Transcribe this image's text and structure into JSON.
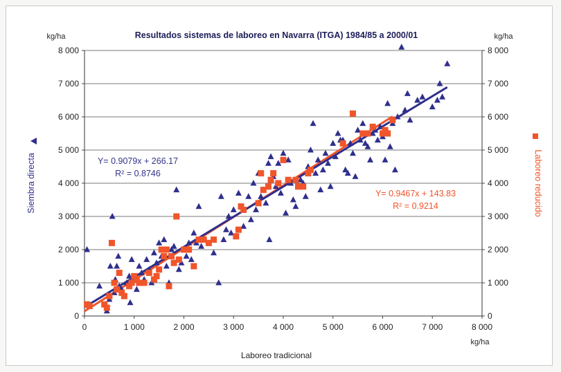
{
  "chart_data": {
    "type": "scatter",
    "title": "Resultados sistemas de laboreo en Navarra (ITGA) 1984/85 a  2000/01",
    "xlabel": "Laboreo tradicional",
    "x_unit": "kg/ha",
    "ylabel_left": "Siembra directa",
    "ylabel_right": "Laboreo reducido",
    "y_unit_left": "kg/ha",
    "y_unit_right": "kg/ha",
    "xlim": [
      0,
      8000
    ],
    "ylim": [
      0,
      8000
    ],
    "x_ticks": [
      "0",
      "1 000",
      "2 000",
      "3 000",
      "4 000",
      "5 000",
      "6 000",
      "7 000",
      "8 000"
    ],
    "y_ticks": [
      "0",
      "1 000",
      "2 000",
      "3 000",
      "4 000",
      "5 000",
      "6 000",
      "7 000",
      "8 000"
    ],
    "grid": "horizontal",
    "series": [
      {
        "name": "Siembra directa",
        "marker": "triangle",
        "color": "#2f2f8c",
        "equation": "Y= 0.9079x + 266.17",
        "r2": "R² = 0.8746",
        "trend": {
          "slope": 0.9079,
          "intercept": 266.17
        },
        "points": [
          [
            50,
            2000
          ],
          [
            300,
            900
          ],
          [
            450,
            150
          ],
          [
            500,
            500
          ],
          [
            520,
            1500
          ],
          [
            560,
            3000
          ],
          [
            600,
            700
          ],
          [
            620,
            1100
          ],
          [
            650,
            1500
          ],
          [
            680,
            1800
          ],
          [
            700,
            900
          ],
          [
            750,
            800
          ],
          [
            800,
            600
          ],
          [
            850,
            1000
          ],
          [
            900,
            1200
          ],
          [
            920,
            400
          ],
          [
            950,
            1700
          ],
          [
            1000,
            1100
          ],
          [
            1050,
            800
          ],
          [
            1100,
            1500
          ],
          [
            1150,
            1300
          ],
          [
            1200,
            1100
          ],
          [
            1250,
            1700
          ],
          [
            1300,
            1400
          ],
          [
            1350,
            1000
          ],
          [
            1400,
            1900
          ],
          [
            1450,
            1600
          ],
          [
            1500,
            2200
          ],
          [
            1550,
            1800
          ],
          [
            1600,
            2300
          ],
          [
            1650,
            1500
          ],
          [
            1700,
            1000
          ],
          [
            1750,
            2000
          ],
          [
            1800,
            2100
          ],
          [
            1850,
            3800
          ],
          [
            1900,
            1400
          ],
          [
            1950,
            1600
          ],
          [
            2000,
            2000
          ],
          [
            2050,
            1800
          ],
          [
            2100,
            2200
          ],
          [
            2150,
            1700
          ],
          [
            2200,
            2500
          ],
          [
            2250,
            2200
          ],
          [
            2300,
            3300
          ],
          [
            2350,
            2100
          ],
          [
            2400,
            2300
          ],
          [
            2500,
            2200
          ],
          [
            2600,
            1900
          ],
          [
            2700,
            1000
          ],
          [
            2750,
            3600
          ],
          [
            2800,
            2300
          ],
          [
            2850,
            2600
          ],
          [
            2900,
            3000
          ],
          [
            2950,
            2500
          ],
          [
            3000,
            3200
          ],
          [
            3050,
            2400
          ],
          [
            3100,
            3700
          ],
          [
            3200,
            2700
          ],
          [
            3300,
            3600
          ],
          [
            3350,
            2900
          ],
          [
            3400,
            4000
          ],
          [
            3450,
            3200
          ],
          [
            3500,
            4300
          ],
          [
            3550,
            3600
          ],
          [
            3600,
            3800
          ],
          [
            3650,
            3400
          ],
          [
            3700,
            4600
          ],
          [
            3720,
            2300
          ],
          [
            3750,
            4800
          ],
          [
            3800,
            4200
          ],
          [
            3850,
            3900
          ],
          [
            3900,
            4600
          ],
          [
            3950,
            3700
          ],
          [
            4000,
            4900
          ],
          [
            4050,
            3100
          ],
          [
            4100,
            4700
          ],
          [
            4150,
            4000
          ],
          [
            4200,
            3500
          ],
          [
            4250,
            3300
          ],
          [
            4300,
            3900
          ],
          [
            4350,
            4100
          ],
          [
            4400,
            4000
          ],
          [
            4450,
            3600
          ],
          [
            4500,
            4500
          ],
          [
            4550,
            5000
          ],
          [
            4600,
            5800
          ],
          [
            4650,
            4300
          ],
          [
            4700,
            4700
          ],
          [
            4750,
            3800
          ],
          [
            4800,
            4400
          ],
          [
            4850,
            4900
          ],
          [
            4900,
            4600
          ],
          [
            4950,
            3900
          ],
          [
            5000,
            5200
          ],
          [
            5050,
            4800
          ],
          [
            5100,
            5500
          ],
          [
            5150,
            5300
          ],
          [
            5200,
            5300
          ],
          [
            5250,
            4400
          ],
          [
            5300,
            4300
          ],
          [
            5350,
            5200
          ],
          [
            5400,
            4900
          ],
          [
            5450,
            4200
          ],
          [
            5500,
            5600
          ],
          [
            5550,
            5300
          ],
          [
            5600,
            5800
          ],
          [
            5650,
            5200
          ],
          [
            5700,
            5100
          ],
          [
            5750,
            4700
          ],
          [
            5800,
            5500
          ],
          [
            5850,
            5600
          ],
          [
            5900,
            5300
          ],
          [
            5950,
            5700
          ],
          [
            6000,
            5400
          ],
          [
            6050,
            4700
          ],
          [
            6100,
            6400
          ],
          [
            6150,
            5100
          ],
          [
            6200,
            5800
          ],
          [
            6250,
            4400
          ],
          [
            6300,
            6000
          ],
          [
            6380,
            8100
          ],
          [
            6450,
            6200
          ],
          [
            6500,
            6700
          ],
          [
            6550,
            5900
          ],
          [
            6700,
            6500
          ],
          [
            6800,
            6600
          ],
          [
            7000,
            6300
          ],
          [
            7100,
            6500
          ],
          [
            7150,
            7000
          ],
          [
            7200,
            6600
          ],
          [
            7300,
            7600
          ]
        ]
      },
      {
        "name": "Laboreo reducido",
        "marker": "square",
        "color": "#f0552b",
        "equation": "Y= 0.9467x + 143.83",
        "r2": "R² = 0.9214",
        "trend": {
          "slope": 0.9467,
          "intercept": 143.83
        },
        "points": [
          [
            50,
            350
          ],
          [
            100,
            300
          ],
          [
            400,
            350
          ],
          [
            450,
            250
          ],
          [
            500,
            600
          ],
          [
            550,
            2200
          ],
          [
            600,
            1000
          ],
          [
            650,
            800
          ],
          [
            700,
            1300
          ],
          [
            750,
            700
          ],
          [
            800,
            600
          ],
          [
            900,
            900
          ],
          [
            950,
            1000
          ],
          [
            1000,
            1200
          ],
          [
            1050,
            1100
          ],
          [
            1100,
            1000
          ],
          [
            1200,
            1000
          ],
          [
            1300,
            1300
          ],
          [
            1400,
            1100
          ],
          [
            1450,
            1200
          ],
          [
            1500,
            1400
          ],
          [
            1550,
            2000
          ],
          [
            1600,
            1800
          ],
          [
            1650,
            2000
          ],
          [
            1700,
            900
          ],
          [
            1750,
            1800
          ],
          [
            1800,
            1600
          ],
          [
            1850,
            3000
          ],
          [
            1900,
            1700
          ],
          [
            2000,
            2000
          ],
          [
            2100,
            2000
          ],
          [
            2200,
            1500
          ],
          [
            2300,
            2300
          ],
          [
            2400,
            2300
          ],
          [
            2500,
            2200
          ],
          [
            2600,
            2300
          ],
          [
            3050,
            2400
          ],
          [
            3100,
            2600
          ],
          [
            3150,
            3300
          ],
          [
            3200,
            3200
          ],
          [
            3500,
            3400
          ],
          [
            3550,
            4300
          ],
          [
            3600,
            3800
          ],
          [
            3700,
            3900
          ],
          [
            3750,
            4100
          ],
          [
            3800,
            4300
          ],
          [
            3900,
            4000
          ],
          [
            4000,
            4700
          ],
          [
            4100,
            4100
          ],
          [
            4250,
            4100
          ],
          [
            4300,
            3900
          ],
          [
            4400,
            3900
          ],
          [
            4500,
            4300
          ],
          [
            4550,
            4400
          ],
          [
            5200,
            5200
          ],
          [
            5400,
            6100
          ],
          [
            5600,
            5500
          ],
          [
            5700,
            5500
          ],
          [
            5800,
            5700
          ],
          [
            6000,
            5500
          ],
          [
            6050,
            5600
          ],
          [
            6100,
            5500
          ],
          [
            6200,
            5900
          ]
        ]
      }
    ]
  }
}
